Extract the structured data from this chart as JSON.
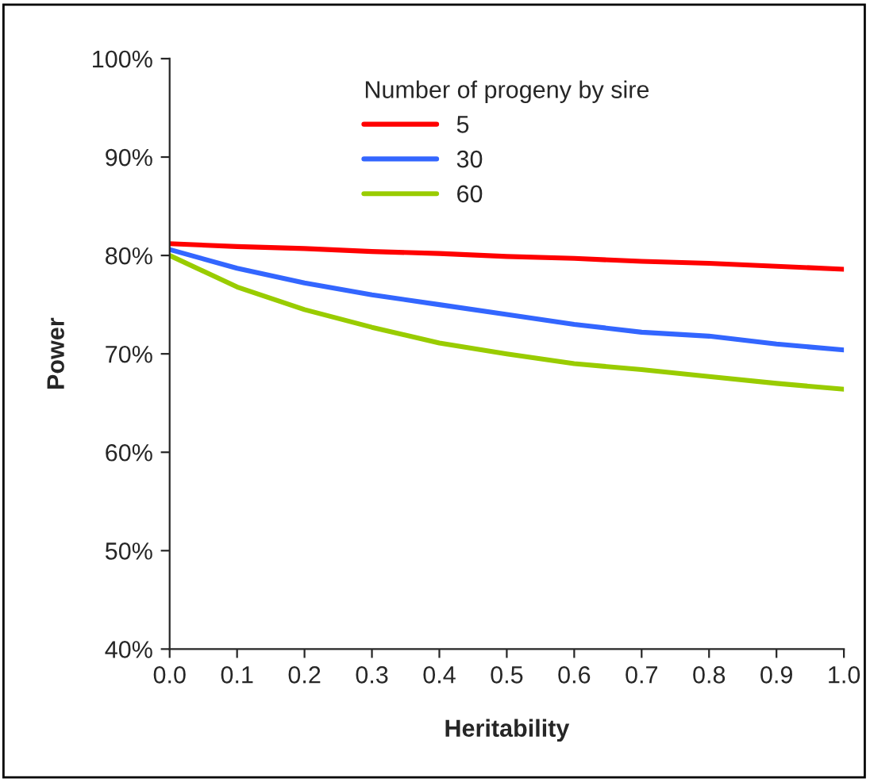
{
  "chart_data": {
    "type": "line",
    "xlabel": "Heritability",
    "ylabel": "Power",
    "legend_title": "Number of progeny by sire",
    "x": [
      0.0,
      0.1,
      0.2,
      0.3,
      0.4,
      0.5,
      0.6,
      0.7,
      0.8,
      0.9,
      1.0
    ],
    "series": [
      {
        "name": "5",
        "color": "#ff0000",
        "values": [
          81.2,
          80.9,
          80.7,
          80.4,
          80.2,
          79.9,
          79.7,
          79.4,
          79.2,
          78.9,
          78.6
        ]
      },
      {
        "name": "30",
        "color": "#3366ff",
        "values": [
          80.6,
          78.7,
          77.2,
          76.0,
          75.0,
          74.0,
          73.0,
          72.2,
          71.8,
          71.0,
          70.4
        ]
      },
      {
        "name": "60",
        "color": "#99cc00",
        "values": [
          80.0,
          76.8,
          74.5,
          72.7,
          71.1,
          70.0,
          69.0,
          68.4,
          67.7,
          67.0,
          66.4
        ]
      }
    ],
    "xlim": [
      0.0,
      1.0
    ],
    "xticks": [
      {
        "value": 0.0,
        "label": "0.0"
      },
      0.1,
      0.2,
      0.3,
      0.4,
      0.5,
      0.6,
      0.7,
      0.8,
      0.9,
      {
        "value": 1.0,
        "label": "1.0"
      }
    ],
    "ylim": [
      40,
      100
    ],
    "yticks": [
      {
        "value": 40,
        "label": "40%"
      },
      {
        "value": 50,
        "label": "50%"
      },
      {
        "value": 60,
        "label": "60%"
      },
      {
        "value": 70,
        "label": "70%"
      },
      {
        "value": 80,
        "label": "80%"
      },
      {
        "value": 90,
        "label": "90%"
      },
      {
        "value": 100,
        "label": "100%"
      }
    ],
    "legend": "top",
    "grid": false,
    "marker": "none",
    "line_style": "solid"
  }
}
